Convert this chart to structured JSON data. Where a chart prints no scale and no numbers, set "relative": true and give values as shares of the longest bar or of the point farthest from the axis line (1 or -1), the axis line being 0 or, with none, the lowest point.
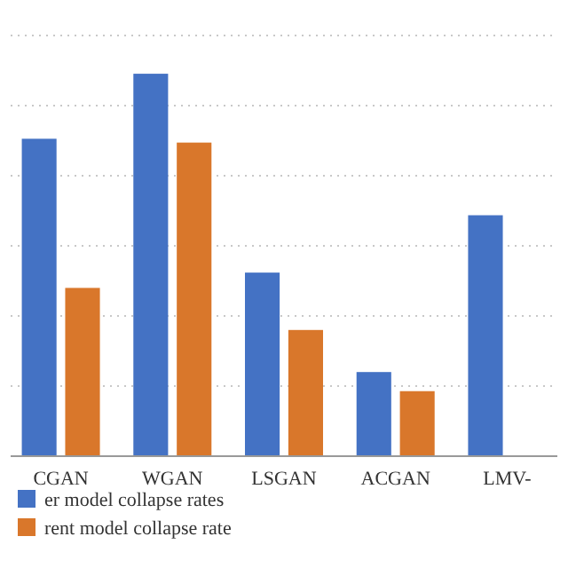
{
  "chart_data": {
    "type": "bar",
    "relative": true,
    "grid": "y",
    "legend": "bottom left",
    "categories": [
      "CGAN",
      "WGAN",
      "LSGAN",
      "ACGAN",
      "LMV-"
    ],
    "series": [
      {
        "name": "er model collapse rates",
        "color": "#4472c4",
        "values": [
          0.83,
          1,
          0.48,
          0.22,
          0.63
        ]
      },
      {
        "name": "rent model collapse rate",
        "color": "#d9772b",
        "values": [
          0.44,
          0.82,
          0.33,
          0.17,
          null
        ]
      }
    ]
  }
}
